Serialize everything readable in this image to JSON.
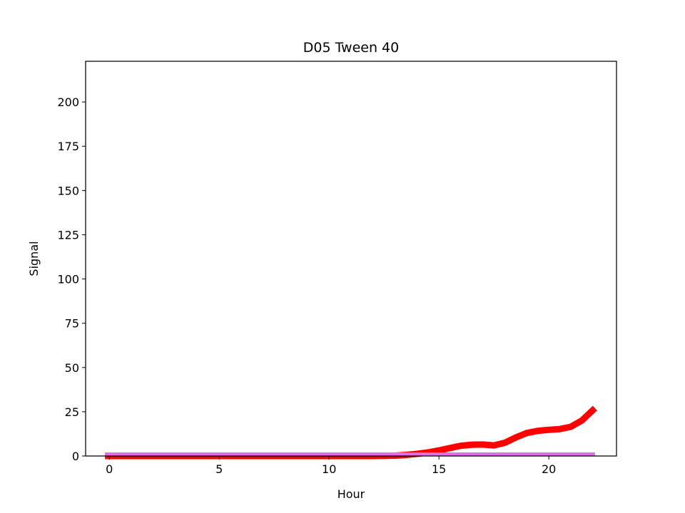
{
  "chart_data": {
    "type": "line",
    "title": "D05 Tween 40",
    "xlabel": "Hour",
    "ylabel": "Signal",
    "xlim": [
      -1.08,
      23.08
    ],
    "ylim": [
      0,
      223
    ],
    "xticks": [
      0,
      5,
      10,
      15,
      20
    ],
    "yticks": [
      0,
      25,
      50,
      75,
      100,
      125,
      150,
      175,
      200
    ],
    "grid": false,
    "legend": "none",
    "series": [
      {
        "color": "#ff0000",
        "x": [
          -0.2,
          1,
          2,
          3,
          4,
          5,
          6,
          7,
          8,
          9,
          10,
          11,
          12,
          13,
          13.5,
          14,
          14.5,
          15,
          15.5,
          16,
          16.5,
          17,
          17.5,
          18,
          18.5,
          19,
          19.5,
          20,
          20.5,
          21,
          21.5,
          22.1
        ],
        "y": [
          0,
          0,
          0,
          0,
          0,
          0,
          0,
          0,
          0,
          0,
          0,
          0,
          0,
          0.2,
          0.6,
          1.2,
          2.0,
          3.2,
          4.5,
          5.8,
          6.4,
          6.5,
          6.0,
          7.5,
          10.5,
          13.0,
          14.2,
          14.8,
          15.2,
          16.5,
          20.0,
          27.0
        ]
      },
      {
        "color": "#e070e0",
        "x": [
          -0.2,
          22.1
        ],
        "y": [
          1,
          1
        ]
      }
    ]
  }
}
